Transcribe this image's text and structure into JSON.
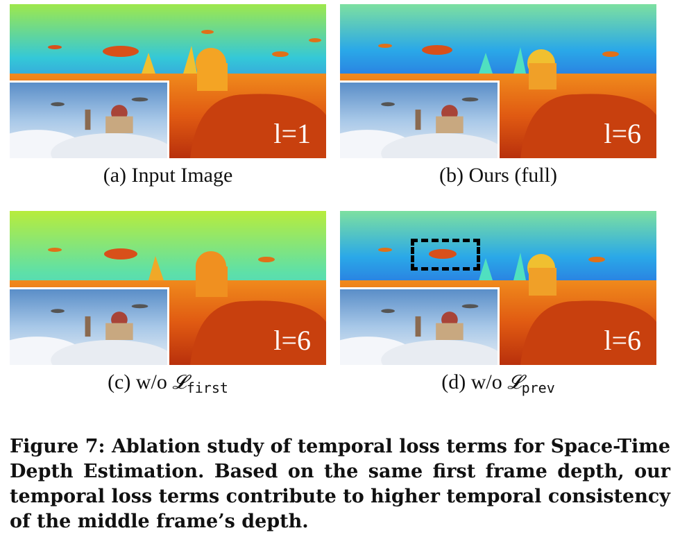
{
  "panels": [
    {
      "id": "a",
      "caption": "(a) Input Image",
      "level": "l=1"
    },
    {
      "id": "b",
      "caption": "(b) Ours (full)",
      "level": "l=6"
    },
    {
      "id": "c",
      "caption_prefix": "(c) w/o ",
      "loss_symbol": "𝓛",
      "loss_sub": "first",
      "level": "l=6"
    },
    {
      "id": "d",
      "caption_prefix": "(d) w/o ",
      "loss_symbol": "𝓛",
      "loss_sub": "prev",
      "level": "l=6"
    }
  ],
  "figure_caption": {
    "label": "Figure 7:",
    "text": "Ablation study of temporal loss terms for Space-Time Depth Estimation. Based on the same first frame depth, our temporal loss terms contribute to higher temporal consistency of the middle frame’s depth."
  },
  "colors": {
    "near": "#c83a0e",
    "mid": "#f08a1c",
    "far_blue": "#2a3ad0",
    "far_green": "#9ce84a"
  }
}
